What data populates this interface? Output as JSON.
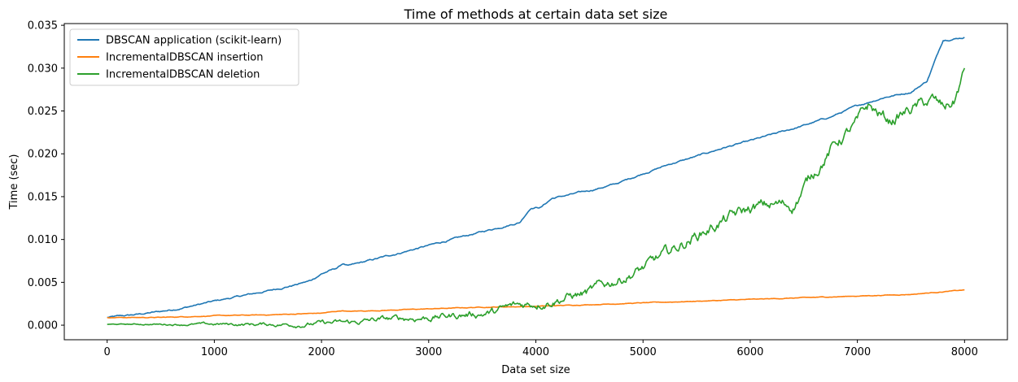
{
  "chart_data": {
    "type": "line",
    "title": "Time of methods at certain data set size",
    "xlabel": "Data set size",
    "ylabel": "Time (sec)",
    "xlim": [
      -400,
      8400
    ],
    "ylim": [
      -0.0017,
      0.0352
    ],
    "xticks": [
      0,
      1000,
      2000,
      3000,
      4000,
      5000,
      6000,
      7000,
      8000
    ],
    "xtick_labels": [
      "0",
      "1000",
      "2000",
      "3000",
      "4000",
      "5000",
      "6000",
      "7000",
      "8000"
    ],
    "yticks": [
      0.0,
      0.005,
      0.01,
      0.015,
      0.02,
      0.025,
      0.03,
      0.035
    ],
    "ytick_labels": [
      "0.000",
      "0.005",
      "0.010",
      "0.015",
      "0.020",
      "0.025",
      "0.030",
      "0.035"
    ],
    "grid": false,
    "legend_position": "top-left",
    "series": [
      {
        "name": "DBSCAN application (scikit-learn)",
        "color": "#1f77b4",
        "noise": 0.00012,
        "x": [
          0,
          250,
          500,
          700,
          1000,
          1250,
          1500,
          1750,
          1900,
          2000,
          2150,
          2200,
          2250,
          2500,
          2750,
          3000,
          3250,
          3500,
          3750,
          3850,
          3950,
          4050,
          4150,
          4500,
          4750,
          5000,
          5250,
          5500,
          5750,
          6000,
          6250,
          6500,
          6750,
          7000,
          7250,
          7500,
          7650,
          7800,
          8000
        ],
        "y": [
          0.0009,
          0.0012,
          0.0016,
          0.002,
          0.0028,
          0.0034,
          0.004,
          0.0047,
          0.0052,
          0.006,
          0.0067,
          0.0072,
          0.0069,
          0.0077,
          0.0085,
          0.0093,
          0.0101,
          0.0109,
          0.0117,
          0.012,
          0.0137,
          0.0138,
          0.0148,
          0.0157,
          0.0165,
          0.0177,
          0.0188,
          0.0197,
          0.0207,
          0.0215,
          0.0224,
          0.0233,
          0.0243,
          0.0256,
          0.0266,
          0.0272,
          0.0285,
          0.0333,
          0.0336
        ]
      },
      {
        "name": "IncrementalDBSCAN insertion",
        "color": "#ff7f0e",
        "noise": 5e-05,
        "x": [
          0,
          500,
          1000,
          1500,
          2000,
          2200,
          2250,
          2500,
          3000,
          3500,
          4000,
          4500,
          5000,
          5500,
          6000,
          6500,
          7000,
          7500,
          7800,
          8000
        ],
        "y": [
          0.0009,
          0.0009,
          0.0011,
          0.0012,
          0.0014,
          0.0017,
          0.0016,
          0.0017,
          0.0019,
          0.0021,
          0.0022,
          0.0024,
          0.0026,
          0.0028,
          0.003,
          0.0032,
          0.0034,
          0.0036,
          0.0039,
          0.0041
        ]
      },
      {
        "name": "IncrementalDBSCAN deletion",
        "color": "#2ca02c",
        "noise": 0.0009,
        "x": [
          0,
          500,
          1000,
          1500,
          1800,
          2000,
          2300,
          2500,
          2800,
          3000,
          3300,
          3600,
          3800,
          4000,
          4200,
          4500,
          4700,
          5000,
          5250,
          5500,
          5750,
          6000,
          6200,
          6400,
          6600,
          6800,
          7000,
          7100,
          7300,
          7500,
          7700,
          7800,
          7900,
          8000
        ],
        "y": [
          0.0001,
          0.0001,
          0.0001,
          0.0001,
          0.0001,
          0.0002,
          0.0003,
          0.0006,
          0.0008,
          0.0009,
          0.0012,
          0.0015,
          0.0022,
          0.0026,
          0.0031,
          0.0038,
          0.005,
          0.0066,
          0.0085,
          0.0105,
          0.0122,
          0.0135,
          0.014,
          0.014,
          0.018,
          0.0212,
          0.0235,
          0.0255,
          0.0238,
          0.0252,
          0.0262,
          0.0253,
          0.026,
          0.0296
        ]
      }
    ]
  }
}
